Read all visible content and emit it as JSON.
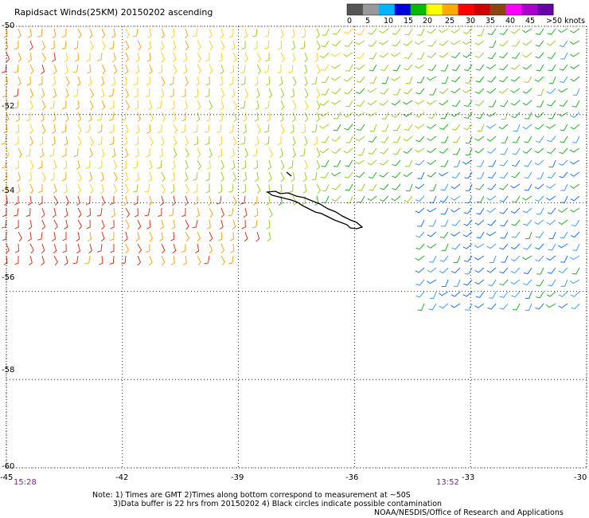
{
  "title": "Rapidsact Winds(25KM) 20150202 ascending",
  "legend": {
    "colors": [
      "#555555",
      "#999999",
      "#00b4ff",
      "#0000dd",
      "#00bb00",
      "#ffff00",
      "#ffaa00",
      "#ff0000",
      "#cc0000",
      "#8b4513",
      "#ff00ff",
      "#aa00cc",
      "#6600aa"
    ],
    "labels": [
      "0",
      "5",
      "10",
      "15",
      "20",
      "25",
      "30",
      "35",
      "40",
      "45",
      ">50 knots"
    ]
  },
  "map": {
    "lon_ticks": [
      "-45",
      "-42",
      "-39",
      "-36",
      "-33",
      "-30"
    ],
    "lat_ticks": [
      "-50",
      "-52",
      "-54",
      "-56",
      "-58",
      "-60"
    ],
    "lon_range": [
      -45,
      -30
    ],
    "lat_range": [
      -60,
      -50
    ]
  },
  "times": {
    "left": "15:28",
    "right": "13:52"
  },
  "notes": {
    "line1": "Note: 1) Times are GMT 2)Times along bottom correspond to measurement at ~50S",
    "line2": "3)Data buffer is 22 hrs from 20150202 4) Black circles indicate possible contamination",
    "line3": "NOAA/NESDIS/Office of Research and Applications"
  }
}
